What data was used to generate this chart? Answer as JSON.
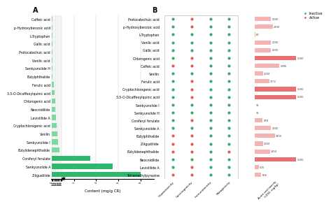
{
  "panel_A_compounds": [
    "Caffeic acid",
    "p-Hydroxybenzoic acid",
    "L-Tryptophan",
    "Gallic acid",
    "Protocatechuic acid",
    "Vanilic acid",
    "Senkyunolide H",
    "Butylphthalide",
    "Ferulic acid",
    "3,5-O-Dicaffeoylquinic acid",
    "Chlorogenic acid",
    "Neocnidilide",
    "Levistilide A",
    "Cryptochlorogenic acid",
    "Vanilin",
    "Senkyunolide I",
    "Butylidenephthalide",
    "Coniferyl ferulate",
    "Senkyunolide A",
    "Z-ligustilide"
  ],
  "panel_A_values": [
    0.05,
    0.05,
    0.05,
    0.06,
    0.07,
    0.08,
    0.09,
    0.1,
    0.2,
    0.25,
    0.3,
    0.35,
    0.4,
    0.45,
    0.5,
    0.55,
    0.7,
    3.5,
    5.5,
    8.0
  ],
  "panel_B_compounds": [
    "Protocatechuic acid",
    "p-Hydroxybenzoic acid",
    "L-Tryptophan",
    "Vanilic acid",
    "Gallic acid",
    "Chlorogenic acid",
    "Caffeic acid",
    "Vanilin",
    "Ferulic acid",
    "Cryptochlorogenic acid",
    "3,5-O-Dicaffeoylquinic acid",
    "Senkyunolide I",
    "Senkyunolide H",
    "Coniferyl ferulate",
    "Senkyunolide A",
    "Butylphthalide",
    "Z-ligustilide",
    "Butylidenephthalide",
    "Neocnidilide",
    "Levistilide A",
    "Tetramethylpyrazine"
  ],
  "panel_B_hepatotoxicity": [
    0,
    0,
    0,
    0,
    0,
    0,
    1,
    0,
    0,
    0,
    0,
    0,
    0,
    0,
    0,
    1,
    1,
    1,
    0,
    0,
    1
  ],
  "panel_B_carcinogenicity": [
    1,
    1,
    0,
    0,
    0,
    1,
    1,
    0,
    1,
    1,
    1,
    0,
    0,
    1,
    0,
    1,
    1,
    1,
    0,
    1,
    1
  ],
  "panel_B_immunotoxicity": [
    0,
    0,
    0,
    0,
    0,
    0,
    0,
    0,
    0,
    0,
    0,
    0,
    0,
    0,
    0,
    0,
    0,
    0,
    0,
    0,
    0
  ],
  "panel_B_mutagenicity": [
    0,
    0,
    0,
    0,
    0,
    0,
    0,
    0,
    0,
    0,
    0,
    0,
    0,
    0,
    0,
    0,
    0,
    1,
    0,
    0,
    0
  ],
  "panel_B_ld50": [
    2000,
    2200,
    80,
    2000,
    2000,
    5000,
    2980,
    1000,
    1772,
    5000,
    5000,
    35,
    35,
    978,
    2000,
    2450,
    1000,
    1850,
    5000,
    500,
    806
  ],
  "inactive_color": "#3aaa72",
  "active_color": "#e05c5c",
  "bar_A_color_light": "#7dd9a0",
  "bar_A_color_dark": "#2db86e",
  "bar_B_color_light": "#f5b3b3",
  "bar_B_color_dark": "#e87070"
}
